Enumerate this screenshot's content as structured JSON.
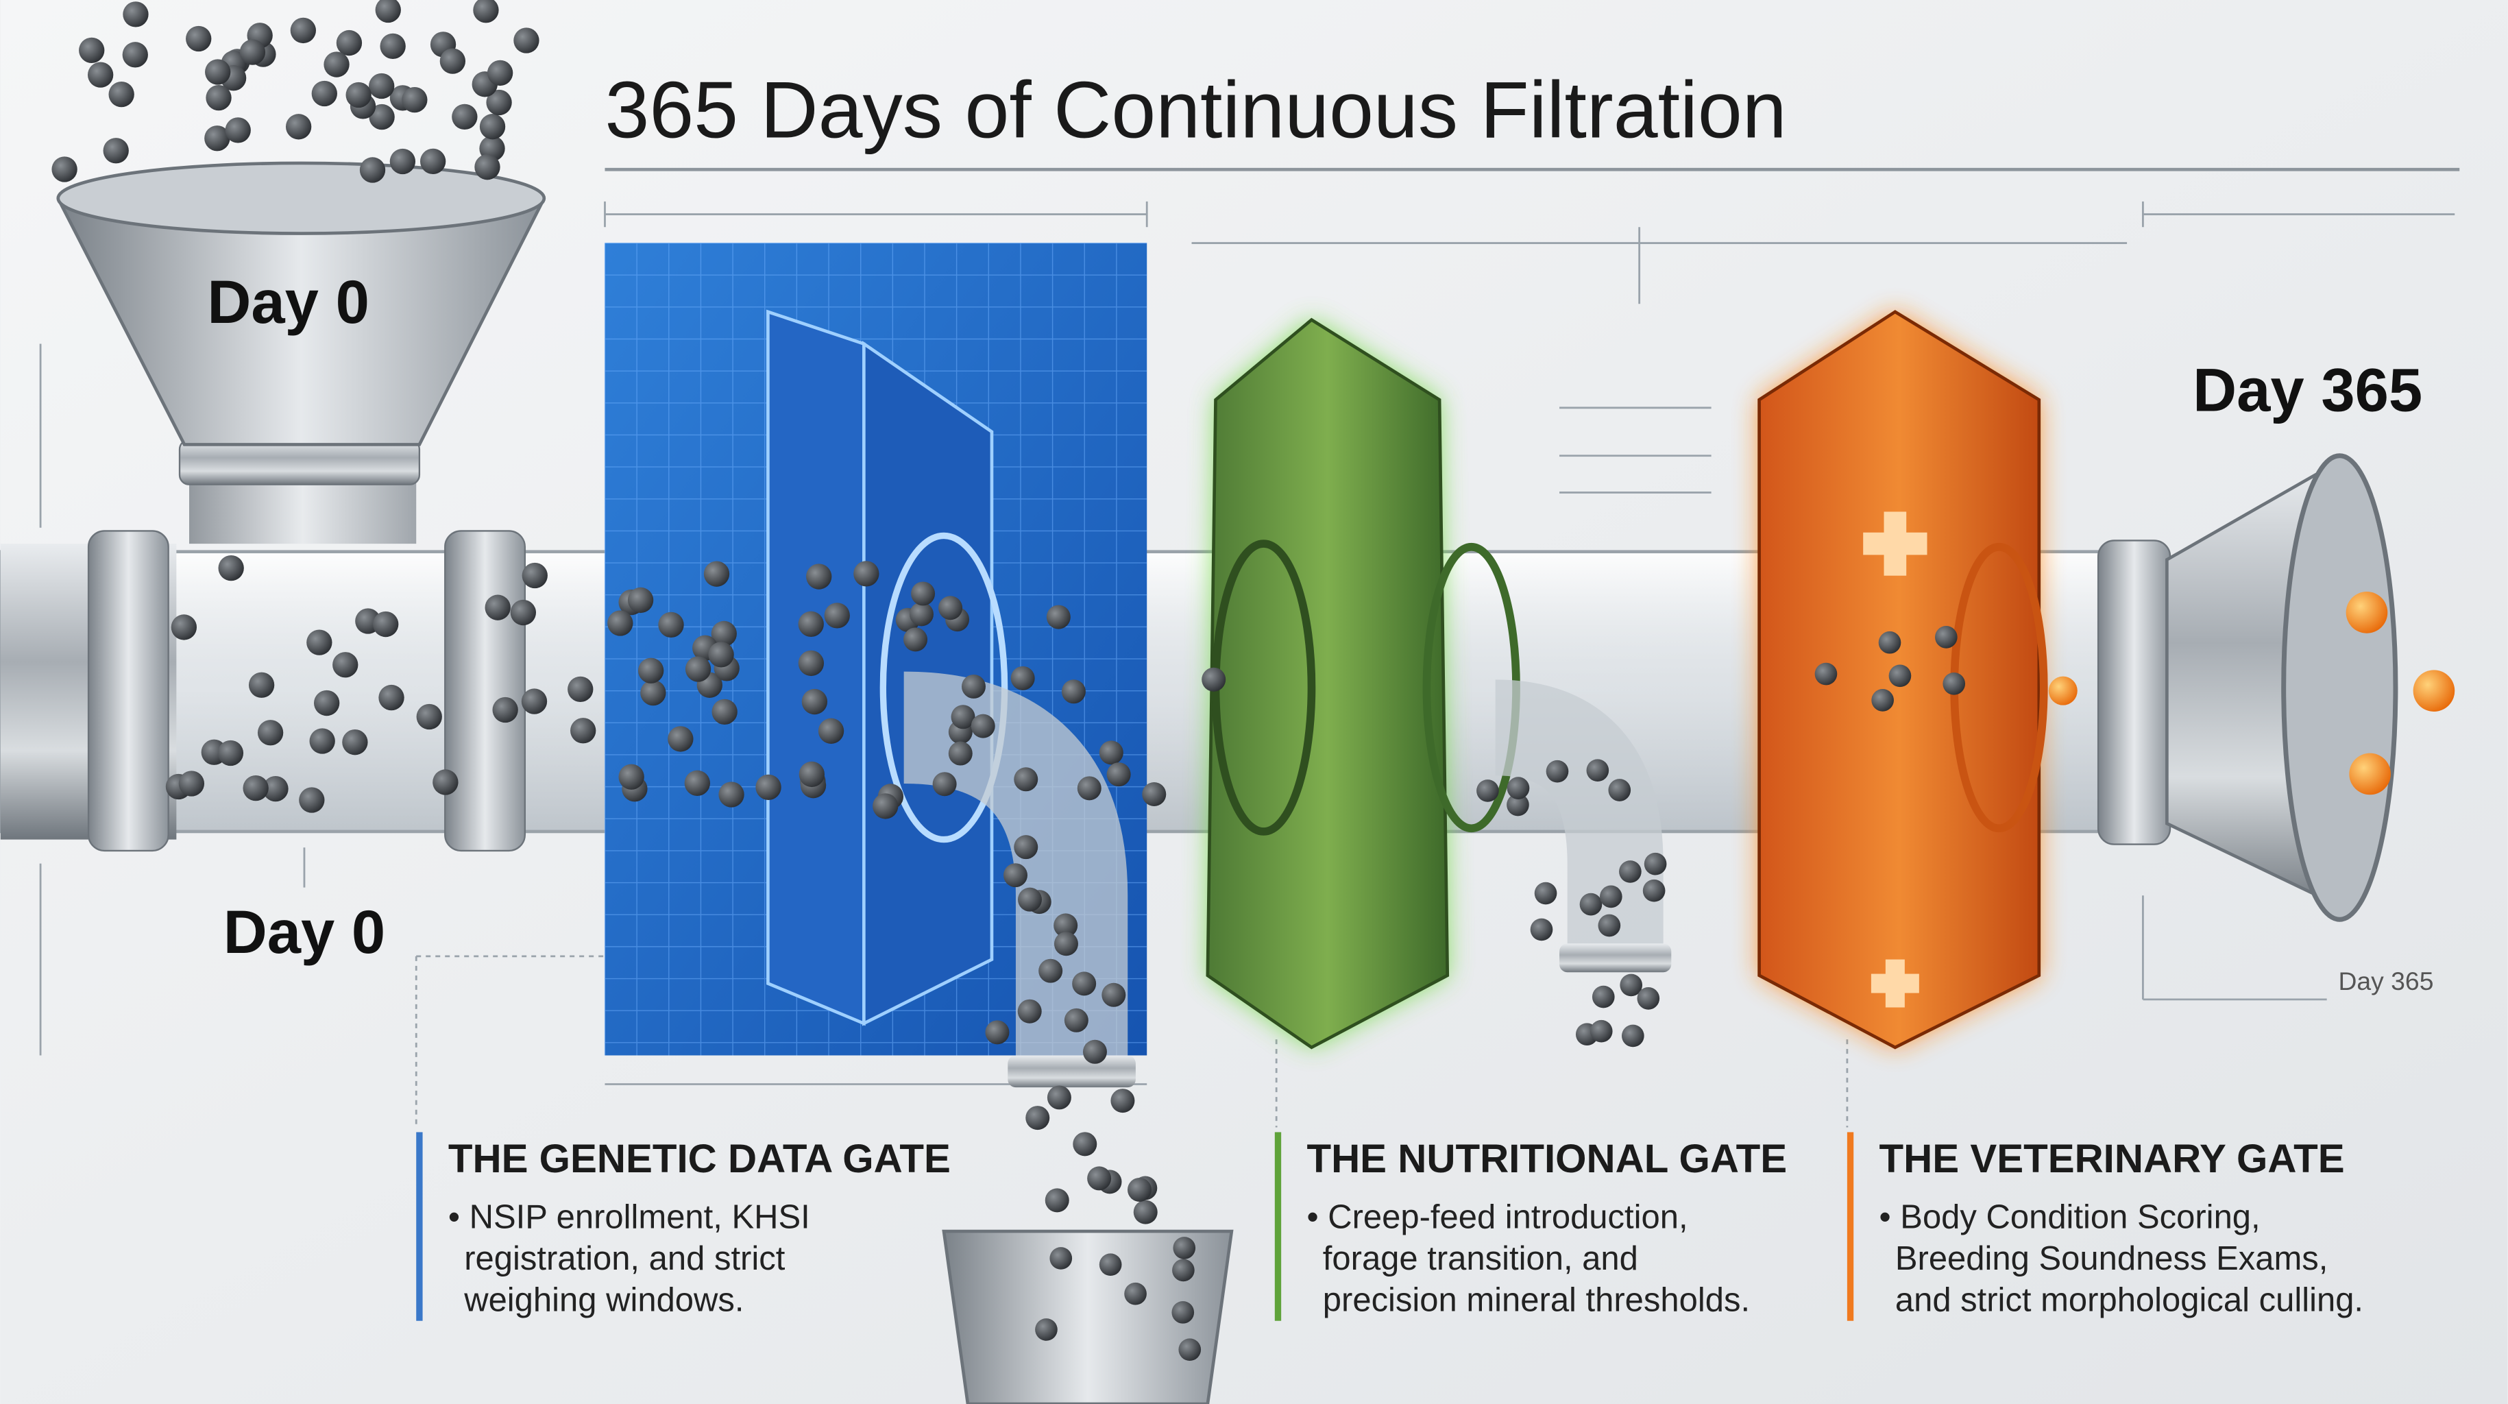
{
  "title": "365 Days of Continuous Filtration",
  "labels": {
    "funnel_day": "Day 0",
    "start_day": "Day 0",
    "end_day": "Day 365",
    "end_note": "Day 365"
  },
  "gates": [
    {
      "title": "THE GENETIC DATA GATE",
      "lines": [
        "• NSIP enrollment, KHSI",
        "registration, and strict",
        "weighing windows."
      ]
    },
    {
      "title": "THE NUTRITIONAL GATE",
      "lines": [
        "• Creep-feed introduction,",
        "forage transition, and",
        "precision mineral thresholds."
      ]
    },
    {
      "title": "THE VETERINARY GATE",
      "lines": [
        "• Body Condition Scoring,",
        "Breeding Soundness Exams,",
        "and strict morphological culling."
      ]
    }
  ]
}
